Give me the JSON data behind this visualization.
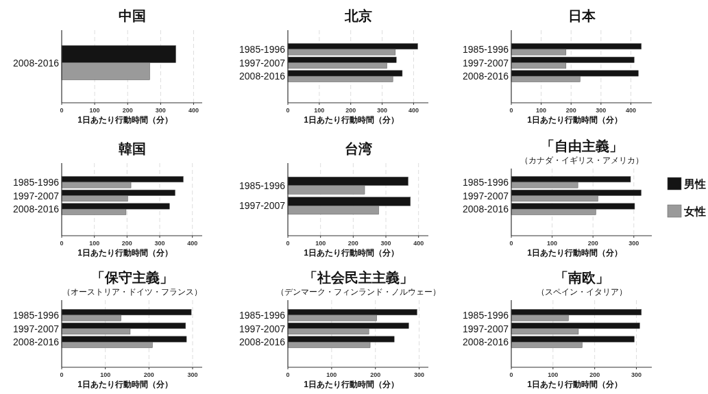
{
  "chart_data": [
    {
      "type": "bar",
      "orientation": "horizontal",
      "title": "中国",
      "xlabel": "1日あたり行動時間（分）",
      "categories": [
        "2008-2016"
      ],
      "series": [
        {
          "color": "#141414",
          "values": [
            346
          ]
        },
        {
          "color": "#9a9a9a",
          "values": [
            267
          ]
        }
      ],
      "xlim": [
        0,
        426
      ],
      "xticks": [
        0,
        100,
        200,
        300,
        400
      ],
      "grid": "x"
    },
    {
      "type": "bar",
      "orientation": "horizontal",
      "title": "北京",
      "xlabel": "1日あたり行動時間（分）",
      "categories": [
        "1985-1996",
        "1997-2007",
        "2008-2016"
      ],
      "series": [
        {
          "color": "#141414",
          "values": [
            413,
            345,
            364
          ]
        },
        {
          "color": "#9a9a9a",
          "values": [
            342,
            315,
            334
          ]
        }
      ],
      "xlim": [
        0,
        447
      ],
      "xticks": [
        0,
        100,
        200,
        300,
        400
      ],
      "grid": "x"
    },
    {
      "type": "bar",
      "orientation": "horizontal",
      "title": "日本",
      "xlabel": "1日あたり行動時間（分）",
      "categories": [
        "1985-1996",
        "1997-2007",
        "2008-2016"
      ],
      "series": [
        {
          "color": "#141414",
          "values": [
            435,
            411,
            425
          ]
        },
        {
          "color": "#9a9a9a",
          "values": [
            183,
            183,
            230
          ]
        }
      ],
      "xlim": [
        0,
        470
      ],
      "xticks": [
        0,
        100,
        200,
        300,
        400
      ],
      "grid": "x"
    },
    {
      "type": "bar",
      "orientation": "horizontal",
      "title": "韓国",
      "xlabel": "1日あたり行動時間（分）",
      "categories": [
        "1985-1996",
        "1997-2007",
        "2008-2016"
      ],
      "series": [
        {
          "color": "#141414",
          "values": [
            372,
            347,
            330
          ]
        },
        {
          "color": "#9a9a9a",
          "values": [
            212,
            202,
            197
          ]
        }
      ],
      "xlim": [
        0,
        430
      ],
      "xticks": [
        0,
        100,
        200,
        300,
        400
      ],
      "grid": "x"
    },
    {
      "type": "bar",
      "orientation": "horizontal",
      "title": "台湾",
      "xlabel": "1日あたり行動時間（分）",
      "categories": [
        "1985-1996",
        "1997-2007"
      ],
      "series": [
        {
          "color": "#141414",
          "values": [
            368,
            375
          ]
        },
        {
          "color": "#9a9a9a",
          "values": [
            235,
            278
          ]
        }
      ],
      "xlim": [
        0,
        430
      ],
      "xticks": [
        0,
        100,
        200,
        300,
        400
      ],
      "grid": "x"
    },
    {
      "type": "bar",
      "orientation": "horizontal",
      "title": "「自由主義」",
      "subtitle": "（カナダ・イギリス・アメリカ）",
      "xlabel": "1日あたり行動時間（分）",
      "categories": [
        "1985-1996",
        "1997-2007",
        "2008-2016"
      ],
      "series": [
        {
          "name": "男性",
          "color": "#141414",
          "values": [
            292,
            318,
            302
          ]
        },
        {
          "name": "女性",
          "color": "#9a9a9a",
          "values": [
            163,
            212,
            207
          ]
        }
      ],
      "xlim": [
        0,
        344
      ],
      "xticks": [
        0,
        100,
        200,
        300
      ],
      "grid": "x",
      "legend": "right"
    },
    {
      "type": "bar",
      "orientation": "horizontal",
      "title": "「保守主義」",
      "subtitle": "（オーストリア・ドイツ・フランス）",
      "xlabel": "1日あたり行動時間（分）",
      "categories": [
        "1985-1996",
        "1997-2007",
        "2008-2016"
      ],
      "series": [
        {
          "color": "#141414",
          "values": [
            297,
            284,
            286
          ]
        },
        {
          "color": "#9a9a9a",
          "values": [
            136,
            157,
            208
          ]
        }
      ],
      "xlim": [
        0,
        322
      ],
      "xticks": [
        0,
        100,
        200,
        300
      ],
      "grid": "x"
    },
    {
      "type": "bar",
      "orientation": "horizontal",
      "title": "「社会民主主義」",
      "subtitle": "（デンマーク・フィンランド・ノルウェー）",
      "xlabel": "1日あたり行動時間（分）",
      "categories": [
        "1985-1996",
        "1997-2007",
        "2008-2016"
      ],
      "series": [
        {
          "color": "#141414",
          "values": [
            295,
            276,
            243
          ]
        },
        {
          "color": "#9a9a9a",
          "values": [
            203,
            185,
            188
          ]
        }
      ],
      "xlim": [
        0,
        321
      ],
      "xticks": [
        0,
        100,
        200,
        300
      ],
      "grid": "x"
    },
    {
      "type": "bar",
      "orientation": "horizontal",
      "title": "「南欧」",
      "subtitle": "（スペイン・イタリア）",
      "xlabel": "1日あたり行動時間（分）",
      "categories": [
        "1985-1996",
        "1997-2007",
        "2008-2016"
      ],
      "series": [
        {
          "color": "#141414",
          "values": [
            312,
            308,
            295
          ]
        },
        {
          "color": "#9a9a9a",
          "values": [
            137,
            161,
            170
          ]
        }
      ],
      "xlim": [
        0,
        337
      ],
      "xticks": [
        0,
        100,
        200,
        300
      ],
      "grid": "x"
    }
  ]
}
